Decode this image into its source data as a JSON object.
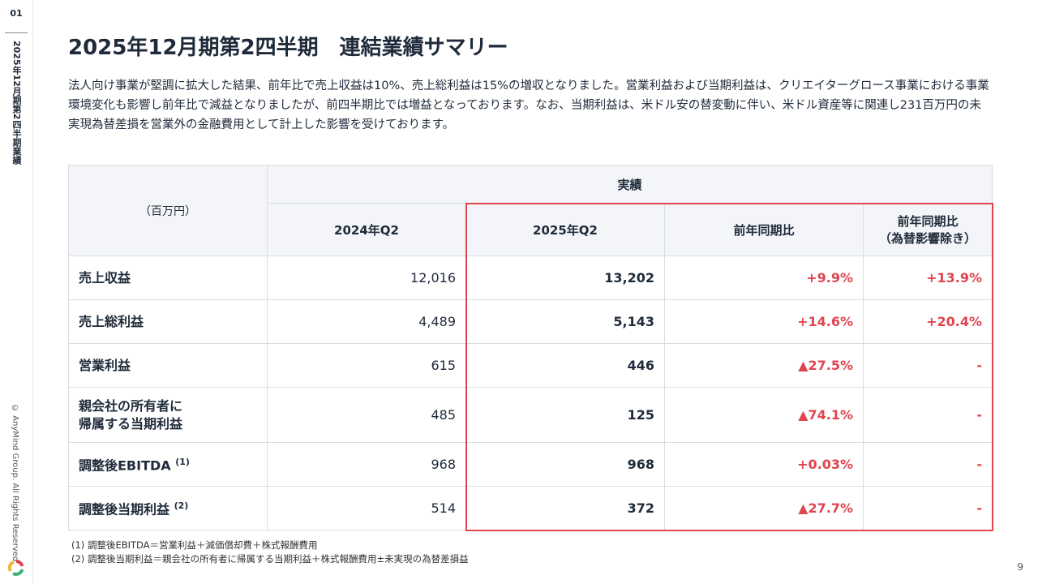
{
  "sidebar": {
    "section": "01",
    "label": "2025年12月期第2四半期業績",
    "copyright": "© AnyMind Group. All Rights Reserved."
  },
  "header": {
    "title": "2025年12月期第2四半期　連結業績サマリー",
    "summary": "法人向け事業が堅調に拡大した結果、前年比で売上収益は10%、売上総利益は15%の増収となりました。営業利益および当期利益は、クリエイターグロース事業における事業環境変化も影響し前年比で減益となりましたが、前四半期比では増益となっております。なお、当期利益は、米ドル安の替変動に伴い、米ドル資産等に関連し231百万円の未実現為替差損を営業外の金融費用として計上した影響を受けております。"
  },
  "table": {
    "unit": "（百万円）",
    "group": "実績",
    "columns": [
      "2024年Q2",
      "2025年Q2",
      "前年同期比",
      "前年同期比\n（為替影響除き）"
    ],
    "rows": [
      {
        "label": "売上収益",
        "cells": [
          "12,016",
          "13,202",
          "+9.9%",
          "+13.9%"
        ]
      },
      {
        "label": "売上総利益",
        "cells": [
          "4,489",
          "5,143",
          "+14.6%",
          "+20.4%"
        ]
      },
      {
        "label": "営業利益",
        "cells": [
          "615",
          "446",
          "▲27.5%",
          "-"
        ]
      },
      {
        "label": "親会社の所有者に\n帰属する当期利益",
        "cells": [
          "485",
          "125",
          "▲74.1%",
          "-"
        ]
      },
      {
        "label": "調整後EBITDA",
        "note": "(1)",
        "cells": [
          "968",
          "968",
          "+0.03%",
          "-"
        ]
      },
      {
        "label": "調整後当期利益",
        "note": "(2)",
        "cells": [
          "514",
          "372",
          "▲27.7%",
          "-"
        ]
      }
    ]
  },
  "footnotes": [
    "(1) 調整後EBITDA＝営業利益＋減価償却費＋株式報酬費用",
    "(2) 調整後当期利益＝親会社の所有者に帰属する当期利益＋株式報酬費用±未実現の為替差損益"
  ],
  "page": "9"
}
